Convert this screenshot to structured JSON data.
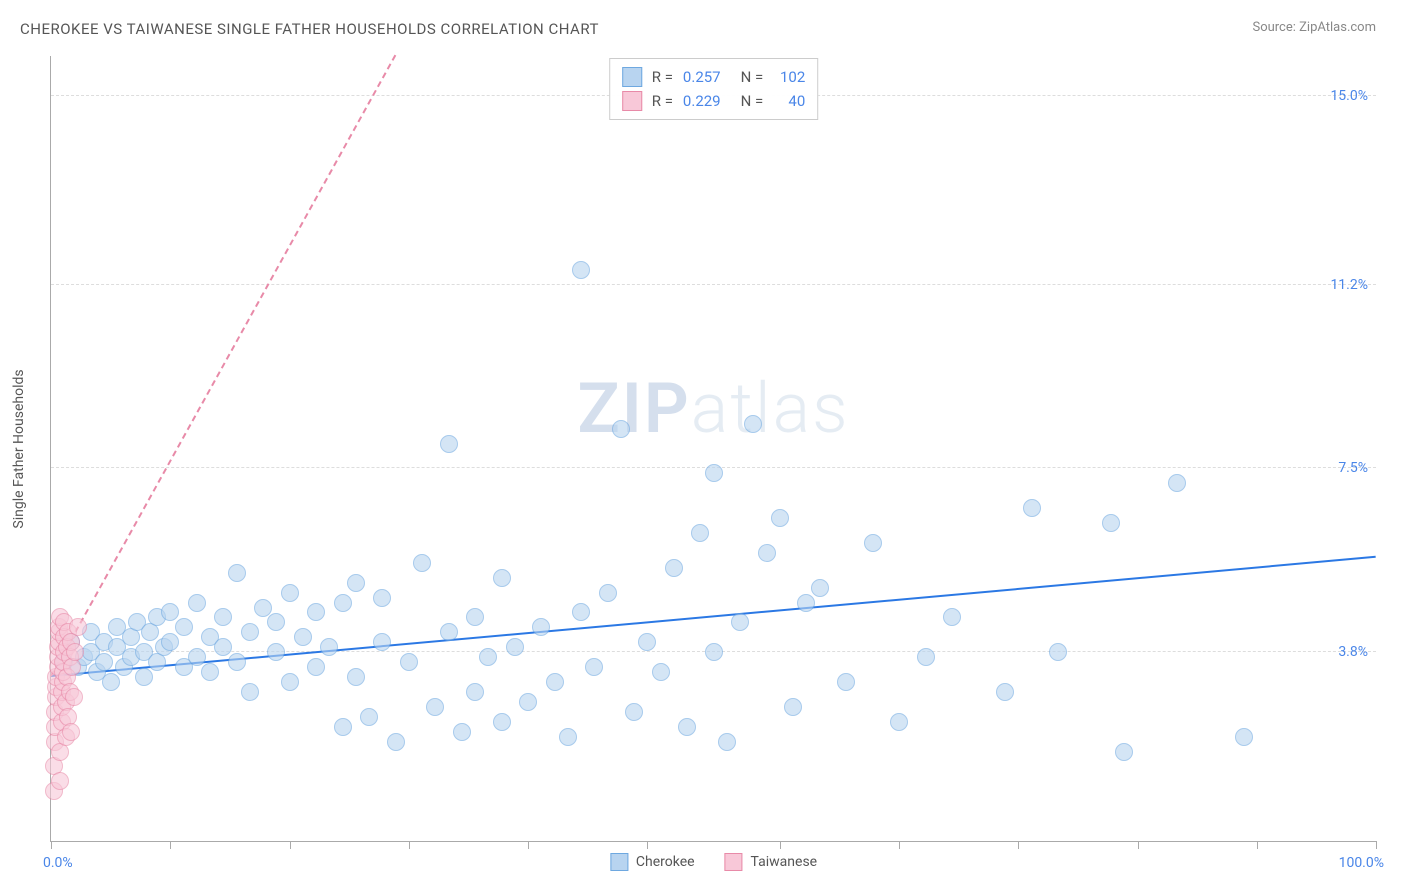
{
  "title": "CHEROKEE VS TAIWANESE SINGLE FATHER HOUSEHOLDS CORRELATION CHART",
  "source_prefix": "Source: ",
  "source_name": "ZipAtlas.com",
  "watermark_bold": "ZIP",
  "watermark_light": "atlas",
  "y_axis_label": "Single Father Households",
  "chart": {
    "type": "scatter",
    "background_color": "#ffffff",
    "grid_color": "#dddddd",
    "axis_color": "#aaaaaa",
    "tick_label_color": "#4a86e8",
    "axis_label_color": "#555555",
    "title_color": "#555555",
    "title_fontsize": 15,
    "label_fontsize": 14,
    "xlim": [
      0,
      100
    ],
    "ylim": [
      0,
      15.8
    ],
    "y_ticks": [
      3.8,
      7.5,
      11.2,
      15.0
    ],
    "y_tick_labels": [
      "3.8%",
      "7.5%",
      "11.2%",
      "15.0%"
    ],
    "x_ticks": [
      0,
      9,
      18,
      27,
      36,
      45,
      55,
      64,
      73,
      82,
      91,
      100
    ],
    "x_label_min": "0.0%",
    "x_label_max": "100.0%",
    "marker_radius": 9,
    "marker_border_width": 1,
    "trend_line_width": 2,
    "series": [
      {
        "name": "Cherokee",
        "fill_color": "#b8d4f0",
        "border_color": "#6ea8e0",
        "fill_opacity": 0.6,
        "R": "0.257",
        "N": "102",
        "trend": {
          "x1": 0,
          "y1": 3.3,
          "x2": 100,
          "y2": 5.7,
          "color": "#2b78e4",
          "dash": "solid"
        },
        "points": [
          [
            1,
            3.6
          ],
          [
            1.5,
            4.0
          ],
          [
            2,
            3.5
          ],
          [
            2.5,
            3.7
          ],
          [
            3,
            3.8
          ],
          [
            3,
            4.2
          ],
          [
            3.5,
            3.4
          ],
          [
            4,
            3.6
          ],
          [
            4,
            4.0
          ],
          [
            4.5,
            3.2
          ],
          [
            5,
            3.9
          ],
          [
            5,
            4.3
          ],
          [
            5.5,
            3.5
          ],
          [
            6,
            3.7
          ],
          [
            6,
            4.1
          ],
          [
            6.5,
            4.4
          ],
          [
            7,
            3.3
          ],
          [
            7,
            3.8
          ],
          [
            7.5,
            4.2
          ],
          [
            8,
            3.6
          ],
          [
            8,
            4.5
          ],
          [
            8.5,
            3.9
          ],
          [
            9,
            4.0
          ],
          [
            9,
            4.6
          ],
          [
            10,
            3.5
          ],
          [
            10,
            4.3
          ],
          [
            11,
            3.7
          ],
          [
            11,
            4.8
          ],
          [
            12,
            3.4
          ],
          [
            12,
            4.1
          ],
          [
            13,
            3.9
          ],
          [
            13,
            4.5
          ],
          [
            14,
            3.6
          ],
          [
            14,
            5.4
          ],
          [
            15,
            4.2
          ],
          [
            15,
            3.0
          ],
          [
            16,
            4.7
          ],
          [
            17,
            3.8
          ],
          [
            17,
            4.4
          ],
          [
            18,
            3.2
          ],
          [
            18,
            5.0
          ],
          [
            19,
            4.1
          ],
          [
            20,
            3.5
          ],
          [
            20,
            4.6
          ],
          [
            21,
            3.9
          ],
          [
            22,
            2.3
          ],
          [
            22,
            4.8
          ],
          [
            23,
            3.3
          ],
          [
            23,
            5.2
          ],
          [
            24,
            2.5
          ],
          [
            25,
            4.0
          ],
          [
            25,
            4.9
          ],
          [
            26,
            2.0
          ],
          [
            27,
            3.6
          ],
          [
            28,
            5.6
          ],
          [
            29,
            2.7
          ],
          [
            30,
            4.2
          ],
          [
            30,
            8.0
          ],
          [
            31,
            2.2
          ],
          [
            32,
            3.0
          ],
          [
            32,
            4.5
          ],
          [
            33,
            3.7
          ],
          [
            34,
            2.4
          ],
          [
            34,
            5.3
          ],
          [
            35,
            3.9
          ],
          [
            36,
            2.8
          ],
          [
            37,
            4.3
          ],
          [
            38,
            3.2
          ],
          [
            39,
            2.1
          ],
          [
            40,
            11.5
          ],
          [
            40,
            4.6
          ],
          [
            41,
            3.5
          ],
          [
            42,
            5.0
          ],
          [
            43,
            8.3
          ],
          [
            44,
            2.6
          ],
          [
            45,
            4.0
          ],
          [
            46,
            3.4
          ],
          [
            47,
            5.5
          ],
          [
            48,
            2.3
          ],
          [
            49,
            6.2
          ],
          [
            50,
            3.8
          ],
          [
            50,
            7.4
          ],
          [
            51,
            2.0
          ],
          [
            52,
            4.4
          ],
          [
            53,
            8.4
          ],
          [
            54,
            5.8
          ],
          [
            55,
            6.5
          ],
          [
            56,
            2.7
          ],
          [
            57,
            4.8
          ],
          [
            58,
            5.1
          ],
          [
            60,
            3.2
          ],
          [
            62,
            6.0
          ],
          [
            64,
            2.4
          ],
          [
            66,
            3.7
          ],
          [
            68,
            4.5
          ],
          [
            72,
            3.0
          ],
          [
            74,
            6.7
          ],
          [
            76,
            3.8
          ],
          [
            80,
            6.4
          ],
          [
            81,
            1.8
          ],
          [
            85,
            7.2
          ],
          [
            90,
            2.1
          ]
        ]
      },
      {
        "name": "Taiwanese",
        "fill_color": "#f8c8d8",
        "border_color": "#e88aa8",
        "fill_opacity": 0.6,
        "R": "0.229",
        "N": "40",
        "trend": {
          "x1": 0,
          "y1": 3.3,
          "x2": 26,
          "y2": 15.8,
          "color": "#e88aa8",
          "dash": "dashed"
        },
        "points": [
          [
            0.2,
            1.0
          ],
          [
            0.2,
            1.5
          ],
          [
            0.3,
            2.0
          ],
          [
            0.3,
            2.3
          ],
          [
            0.3,
            2.6
          ],
          [
            0.4,
            2.9
          ],
          [
            0.4,
            3.1
          ],
          [
            0.4,
            3.3
          ],
          [
            0.5,
            3.5
          ],
          [
            0.5,
            3.7
          ],
          [
            0.5,
            3.9
          ],
          [
            0.6,
            4.0
          ],
          [
            0.6,
            4.2
          ],
          [
            0.6,
            4.3
          ],
          [
            0.7,
            4.5
          ],
          [
            0.7,
            1.2
          ],
          [
            0.7,
            1.8
          ],
          [
            0.8,
            2.4
          ],
          [
            0.8,
            2.7
          ],
          [
            0.8,
            3.0
          ],
          [
            0.9,
            3.2
          ],
          [
            0.9,
            3.4
          ],
          [
            0.9,
            3.6
          ],
          [
            1.0,
            3.8
          ],
          [
            1.0,
            4.1
          ],
          [
            1.0,
            4.4
          ],
          [
            1.1,
            2.1
          ],
          [
            1.1,
            2.8
          ],
          [
            1.2,
            3.3
          ],
          [
            1.2,
            3.9
          ],
          [
            1.3,
            4.2
          ],
          [
            1.3,
            2.5
          ],
          [
            1.4,
            3.0
          ],
          [
            1.4,
            3.7
          ],
          [
            1.5,
            4.0
          ],
          [
            1.5,
            2.2
          ],
          [
            1.6,
            3.5
          ],
          [
            1.7,
            2.9
          ],
          [
            1.8,
            3.8
          ],
          [
            2.0,
            4.3
          ]
        ]
      }
    ],
    "legend_labels": {
      "R": "R =",
      "N": "N ="
    }
  },
  "bottom_legend": [
    {
      "label": "Cherokee",
      "fill": "#b8d4f0",
      "border": "#6ea8e0"
    },
    {
      "label": "Taiwanese",
      "fill": "#f8c8d8",
      "border": "#e88aa8"
    }
  ]
}
